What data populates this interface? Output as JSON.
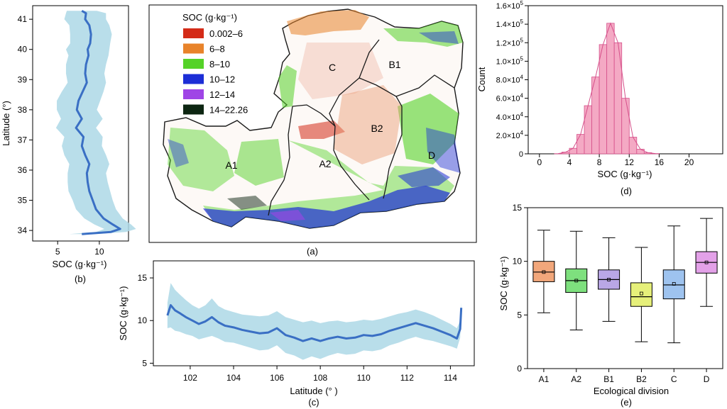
{
  "chart_data": [
    {
      "panel": "(b)",
      "type": "line",
      "orientation": "vertical",
      "xlabel": "SOC (g·kg⁻¹)",
      "ylabel": "Latitude (°)",
      "xlim": [
        2,
        13.5
      ],
      "ylim": [
        33.65,
        41.45
      ],
      "xticks": [
        "5",
        "10"
      ],
      "yticks": [
        "34",
        "35",
        "36",
        "37",
        "38",
        "39",
        "40",
        "41"
      ],
      "band_color": "#add8e6",
      "line_color": "#3a6fc4",
      "series": [
        {
          "points": [
            [
              41.28,
              7.9
            ],
            [
              41.2,
              8.4
            ],
            [
              41.0,
              8.3
            ],
            [
              40.8,
              8.8
            ],
            [
              40.5,
              9.0
            ],
            [
              40.2,
              8.9
            ],
            [
              40.0,
              8.6
            ],
            [
              39.8,
              8.7
            ],
            [
              39.5,
              8.4
            ],
            [
              39.2,
              8.3
            ],
            [
              38.9,
              8.5
            ],
            [
              38.6,
              8.0
            ],
            [
              38.3,
              7.5
            ],
            [
              38.0,
              7.3
            ],
            [
              37.7,
              7.9
            ],
            [
              37.4,
              7.2
            ],
            [
              37.1,
              8.1
            ],
            [
              36.8,
              7.9
            ],
            [
              36.5,
              8.3
            ],
            [
              36.2,
              8.8
            ],
            [
              35.9,
              8.5
            ],
            [
              35.6,
              8.6
            ],
            [
              35.3,
              8.8
            ],
            [
              35.0,
              9.2
            ],
            [
              34.7,
              9.6
            ],
            [
              34.4,
              10.5
            ],
            [
              34.2,
              11.6
            ],
            [
              34.05,
              12.5
            ],
            [
              33.95,
              11.4
            ],
            [
              33.88,
              7.9
            ]
          ],
          "band_halfwidth": [
            1.8,
            2.4,
            2.5,
            2.4,
            2.5,
            2.4,
            2.6,
            2.4,
            2.4,
            2.3,
            2.3,
            2.5,
            2.6,
            2.4,
            2.5,
            2.4,
            2.3,
            2.4,
            2.5,
            2.4,
            2.3,
            2.4,
            2.5,
            2.4,
            2.4,
            2.3,
            2.2,
            1.9,
            1.8,
            1.5
          ]
        }
      ]
    },
    {
      "panel": "(a)",
      "type": "heatmap",
      "legend_title": "SOC (g·kg⁻¹)",
      "legend": [
        {
          "label": "0.002–6",
          "color": "#d42b18"
        },
        {
          "label": "6–8",
          "color": "#e8832a"
        },
        {
          "label": "8–10",
          "color": "#55d228"
        },
        {
          "label": "10–12",
          "color": "#1c2ed6"
        },
        {
          "label": "12–14",
          "color": "#9f45e6"
        },
        {
          "label": "14–22.26",
          "color": "#0d2612"
        }
      ],
      "regions": [
        "C",
        "B1",
        "B2",
        "A2",
        "A1",
        "D"
      ]
    },
    {
      "panel": "(c)",
      "type": "line",
      "xlabel": "Latitude (° )",
      "ylabel": "SOC (g·kg⁻¹)",
      "xlim": [
        100.3,
        115.1
      ],
      "ylim": [
        4.7,
        17.0
      ],
      "xticks": [
        "102",
        "104",
        "106",
        "108",
        "110",
        "112",
        "114"
      ],
      "yticks": [
        "5",
        "10",
        "15"
      ],
      "band_color": "#add8e6",
      "line_color": "#3a6fc4",
      "series": [
        {
          "points": [
            [
              100.95,
              10.6
            ],
            [
              101.1,
              11.8
            ],
            [
              101.3,
              11.2
            ],
            [
              101.5,
              10.9
            ],
            [
              101.8,
              10.4
            ],
            [
              102.1,
              10.0
            ],
            [
              102.4,
              9.6
            ],
            [
              102.7,
              9.9
            ],
            [
              103.0,
              10.4
            ],
            [
              103.3,
              9.8
            ],
            [
              103.6,
              9.4
            ],
            [
              104.0,
              9.2
            ],
            [
              104.4,
              8.9
            ],
            [
              104.8,
              8.7
            ],
            [
              105.2,
              8.5
            ],
            [
              105.6,
              8.6
            ],
            [
              106.0,
              9.1
            ],
            [
              106.4,
              8.3
            ],
            [
              106.8,
              8.0
            ],
            [
              107.2,
              7.6
            ],
            [
              107.6,
              7.9
            ],
            [
              108.0,
              7.6
            ],
            [
              108.4,
              7.9
            ],
            [
              108.8,
              8.1
            ],
            [
              109.2,
              7.9
            ],
            [
              109.6,
              8.0
            ],
            [
              110.0,
              8.3
            ],
            [
              110.4,
              8.2
            ],
            [
              110.8,
              8.4
            ],
            [
              111.2,
              8.8
            ],
            [
              111.6,
              9.1
            ],
            [
              112.0,
              9.4
            ],
            [
              112.4,
              9.7
            ],
            [
              112.8,
              9.4
            ],
            [
              113.2,
              9.1
            ],
            [
              113.6,
              8.7
            ],
            [
              114.0,
              8.3
            ],
            [
              114.3,
              7.9
            ],
            [
              114.45,
              9.0
            ],
            [
              114.5,
              11.5
            ]
          ],
          "band_halfwidth": [
            1.5,
            2.6,
            2.4,
            2.2,
            2.0,
            1.8,
            1.8,
            1.9,
            2.2,
            1.9,
            1.9,
            1.8,
            1.8,
            1.9,
            2.0,
            2.0,
            2.0,
            2.1,
            2.1,
            2.2,
            2.1,
            2.1,
            2.0,
            1.9,
            1.9,
            1.9,
            1.8,
            1.8,
            1.8,
            1.7,
            1.7,
            1.6,
            1.6,
            1.6,
            1.5,
            1.4,
            1.3,
            1.2,
            1.0,
            0.6
          ]
        }
      ]
    },
    {
      "panel": "(d)",
      "type": "bar",
      "subtype": "histogram",
      "xlabel": "SOC (g·kg⁻¹)",
      "ylabel": "Count",
      "xlim": [
        -1.5,
        24.5
      ],
      "ylim": [
        0,
        160000
      ],
      "xticks": [
        "0",
        "4",
        "8",
        "12",
        "16",
        "20"
      ],
      "yticks": [
        {
          "mant": "0",
          "exp": ""
        },
        {
          "mant": "2.0×10",
          "exp": "4"
        },
        {
          "mant": "4.0×10",
          "exp": "4"
        },
        {
          "mant": "6.0×10",
          "exp": "4"
        },
        {
          "mant": "8.0×10",
          "exp": "4"
        },
        {
          "mant": "1.0×10",
          "exp": "5"
        },
        {
          "mant": "1.2×10",
          "exp": "5"
        },
        {
          "mant": "1.4×10",
          "exp": "5"
        },
        {
          "mant": "1.6×10",
          "exp": "5"
        }
      ],
      "bin_width": 1,
      "bins": [
        {
          "x0": 2,
          "count": 200
        },
        {
          "x0": 3,
          "count": 1800
        },
        {
          "x0": 4,
          "count": 6000
        },
        {
          "x0": 5,
          "count": 21000
        },
        {
          "x0": 6,
          "count": 52000
        },
        {
          "x0": 7,
          "count": 83000
        },
        {
          "x0": 8,
          "count": 118000
        },
        {
          "x0": 9,
          "count": 141000
        },
        {
          "x0": 10,
          "count": 120000
        },
        {
          "x0": 11,
          "count": 60000
        },
        {
          "x0": 12,
          "count": 18000
        },
        {
          "x0": 13,
          "count": 5000
        },
        {
          "x0": 14,
          "count": 1200
        },
        {
          "x0": 15,
          "count": 300
        }
      ],
      "bar_fill": "#f4a9c4",
      "bar_stroke": "#d6508a",
      "curve_color": "#d6508a"
    },
    {
      "panel": "(e)",
      "type": "box",
      "xlabel": "Ecological division",
      "ylabel": "SOC (g·kg⁻¹)",
      "ylim": [
        0,
        15
      ],
      "yticks": [
        "0",
        "5",
        "10",
        "15"
      ],
      "categories": [
        "A1",
        "A2",
        "B1",
        "B2",
        "C",
        "D"
      ],
      "boxes": [
        {
          "whisker_low": 5.2,
          "q1": 8.1,
          "median": 9.0,
          "mean": 9.0,
          "q3": 10.0,
          "whisker_high": 12.9,
          "color": "#f2a77b"
        },
        {
          "whisker_low": 3.6,
          "q1": 7.1,
          "median": 8.2,
          "mean": 8.2,
          "q3": 9.3,
          "whisker_high": 12.8,
          "color": "#7ee07e"
        },
        {
          "whisker_low": 4.4,
          "q1": 7.4,
          "median": 8.3,
          "mean": 8.3,
          "q3": 9.2,
          "whisker_high": 12.2,
          "color": "#b9a7e6"
        },
        {
          "whisker_low": 2.5,
          "q1": 5.8,
          "median": 6.7,
          "mean": 7.0,
          "q3": 8.0,
          "whisker_high": 11.3,
          "color": "#e6f07a"
        },
        {
          "whisker_low": 2.4,
          "q1": 6.5,
          "median": 7.8,
          "mean": 7.9,
          "q3": 9.2,
          "whisker_high": 13.3,
          "color": "#9ec3ef"
        },
        {
          "whisker_low": 5.8,
          "q1": 8.9,
          "median": 9.9,
          "mean": 9.9,
          "q3": 10.9,
          "whisker_high": 14.0,
          "color": "#e3a1e8"
        }
      ]
    }
  ],
  "panel_labels": {
    "a": "(a)",
    "b": "(b)",
    "c": "(c)",
    "d": "(d)",
    "e": "(e)"
  }
}
